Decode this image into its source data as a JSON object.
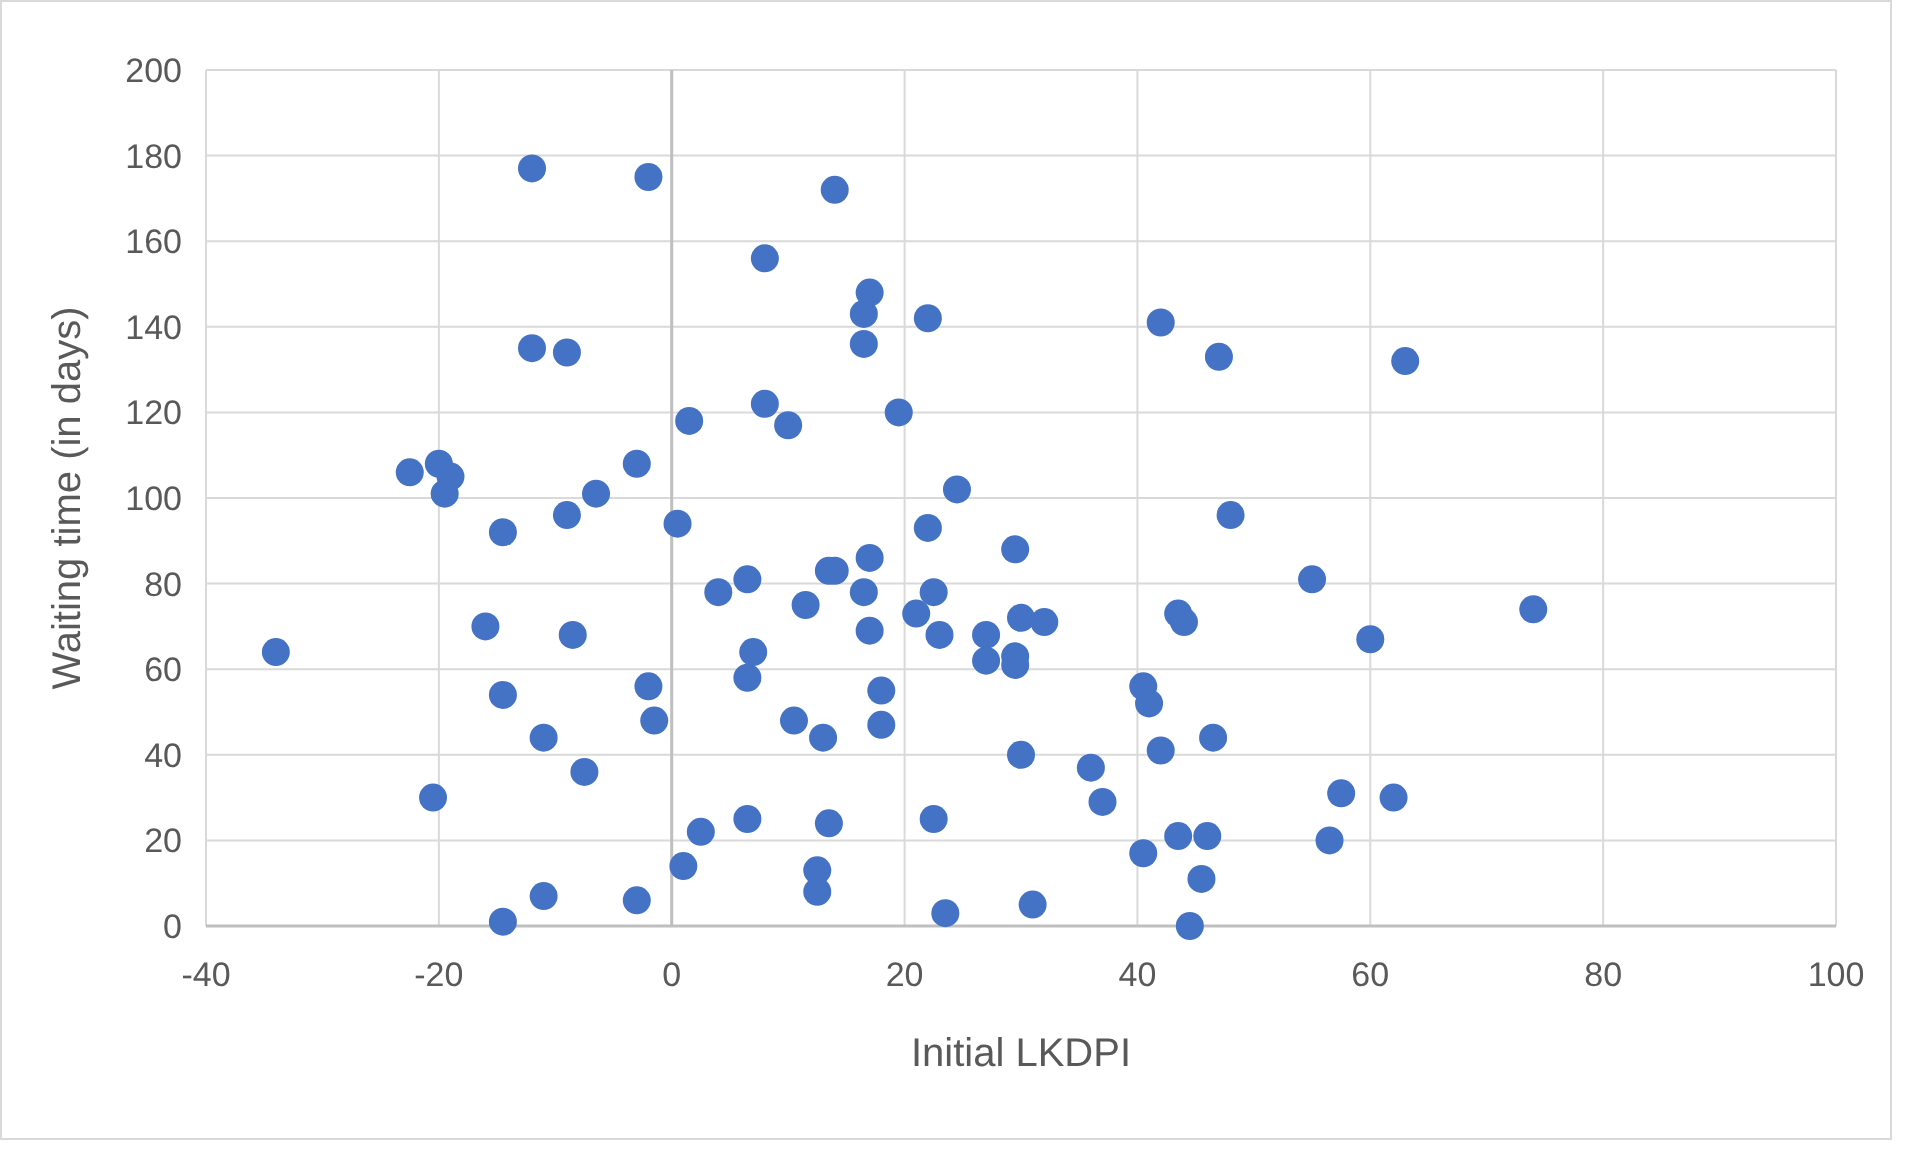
{
  "chart_data": {
    "type": "scatter",
    "xlabel": "Initial LKDPI",
    "ylabel": "Waiting time (in days)",
    "xlim": [
      -40,
      100
    ],
    "xticks": [
      -40,
      -20,
      0,
      20,
      40,
      60,
      80,
      100
    ],
    "ylim": [
      0,
      200
    ],
    "yticks": [
      0,
      20,
      40,
      60,
      80,
      100,
      120,
      140,
      160,
      180,
      200
    ],
    "grid": true,
    "marker": "circle",
    "series": [
      {
        "color": "#4472c4",
        "x": [
          -12,
          -2,
          14,
          8,
          17,
          16.5,
          22,
          16.5,
          -12,
          -9,
          42,
          47,
          63,
          8,
          10,
          1.5,
          19.5,
          -22.5,
          -20,
          -19,
          -19.5,
          -6.5,
          -3,
          -9,
          -14.5,
          0.5,
          24.5,
          48,
          22,
          29.5,
          17,
          13.5,
          14,
          6.5,
          4,
          16.5,
          22.5,
          11.5,
          21,
          55,
          74,
          -34,
          -16,
          -8.5,
          17,
          23,
          27,
          30,
          32,
          43.5,
          44,
          7,
          27,
          29.5,
          29.5,
          60,
          6.5,
          -2,
          -14.5,
          -1.5,
          10.5,
          18,
          18,
          40.5,
          41,
          -11,
          13,
          -7.5,
          30,
          42,
          46.5,
          36,
          37,
          -20.5,
          57.5,
          62,
          2.5,
          6.5,
          13.5,
          22.5,
          43.5,
          46,
          56.5,
          40.5,
          1,
          12.5,
          12.5,
          45.5,
          -11,
          -3,
          -14.5,
          23.5,
          31,
          44.5
        ],
        "values": [
          177,
          175,
          172,
          156,
          148,
          143,
          142,
          136,
          135,
          134,
          141,
          133,
          132,
          122,
          117,
          118,
          120,
          106,
          108,
          105,
          101,
          101,
          108,
          96,
          92,
          94,
          102,
          96,
          93,
          88,
          86,
          83,
          83,
          81,
          78,
          78,
          78,
          75,
          73,
          81,
          74,
          64,
          70,
          68,
          69,
          68,
          68,
          72,
          71,
          73,
          71,
          64,
          62,
          63,
          61,
          67,
          58,
          56,
          54,
          48,
          48,
          55,
          47,
          56,
          52,
          44,
          44,
          36,
          40,
          41,
          44,
          37,
          29,
          30,
          31,
          30,
          22,
          25,
          24,
          25,
          21,
          21,
          20,
          17,
          14,
          13,
          8,
          11,
          7,
          6,
          1,
          3,
          5,
          0
        ]
      }
    ]
  }
}
